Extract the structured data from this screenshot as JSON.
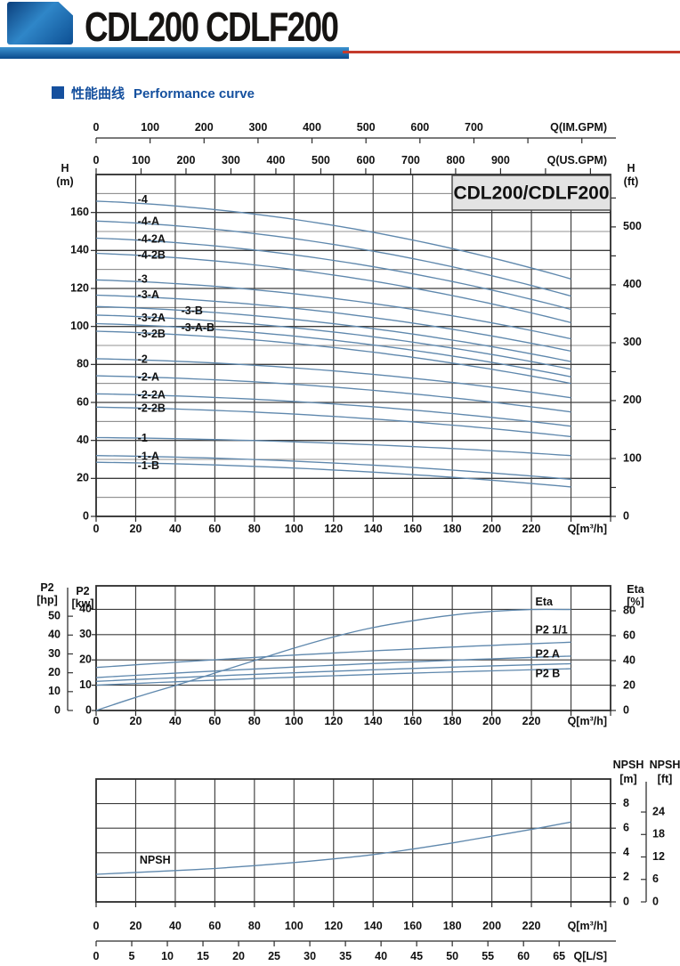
{
  "header": {
    "title": "CDL200 CDLF200"
  },
  "section": {
    "title_zh": "性能曲线",
    "title_en": "Performance curve"
  },
  "colors": {
    "curve": "#5f88ad",
    "grid_major": "#3d3d3d",
    "grid_minor": "#6e6e6e",
    "border": "#2b2b2b",
    "text": "#111111",
    "box_bg": "#e3e3e3",
    "accent_blue": "#15509e",
    "accent_red": "#c43b2c"
  },
  "chart_data": [
    {
      "type": "line",
      "title_box": "CDL200/CDLF200",
      "x_bottom": {
        "label": "Q[m³/h]",
        "ticks": [
          0,
          20,
          40,
          60,
          80,
          100,
          120,
          140,
          160,
          180,
          200,
          220
        ],
        "domain": [
          0,
          260
        ],
        "grid_step": 20
      },
      "x_top_us": {
        "label": "Q(US.GPM)",
        "ticks": [
          0,
          100,
          200,
          300,
          400,
          500,
          600,
          700,
          800,
          900
        ],
        "m3h_per_unit": 0.22712
      },
      "x_top_im": {
        "label": "Q(IM.GPM)",
        "ticks": [
          0,
          100,
          200,
          300,
          400,
          500,
          600,
          700
        ],
        "m3h_per_unit": 0.27276
      },
      "y_left": {
        "title": "H",
        "unit": "(m)",
        "ticks": [
          0,
          20,
          40,
          60,
          80,
          100,
          120,
          140,
          160
        ],
        "domain": [
          0,
          180
        ],
        "grid_step": 10
      },
      "y_right": {
        "title": "H",
        "unit": "(ft)",
        "ticks": [
          0,
          100,
          200,
          300,
          400,
          500
        ],
        "tick_step": 50,
        "m_per_unit": 0.3048
      },
      "q_end": 240,
      "series": [
        {
          "name": "-4",
          "h0": 166,
          "h1": 125,
          "label_q": 21,
          "label_h": 166.5
        },
        {
          "name": "-4-A",
          "h0": 155.5,
          "h1": 116,
          "label_q": 21,
          "label_h": 155
        },
        {
          "name": "-4-2A",
          "h0": 146.5,
          "h1": 109,
          "label_q": 21,
          "label_h": 145.6
        },
        {
          "name": "-4-2B",
          "h0": 138.5,
          "h1": 102,
          "label_q": 21,
          "label_h": 137.2
        },
        {
          "name": "-3",
          "h0": 124.5,
          "h1": 93.5,
          "label_q": 21,
          "label_h": 124.7
        },
        {
          "name": "-3-A",
          "h0": 116.5,
          "h1": 87,
          "label_q": 21,
          "label_h": 116.3
        },
        {
          "name": "-3-B",
          "h0": 110.5,
          "h1": 81.5,
          "label_q": 43,
          "label_h": 107.9
        },
        {
          "name": "-3-2A",
          "h0": 106,
          "h1": 77.5,
          "label_q": 21,
          "label_h": 104.2
        },
        {
          "name": "-3-A-B",
          "h0": 101.5,
          "h1": 73.5,
          "label_q": 43,
          "label_h": 99.1
        },
        {
          "name": "-3-2B",
          "h0": 97.5,
          "h1": 70,
          "label_q": 21,
          "label_h": 95.8
        },
        {
          "name": "-2",
          "h0": 83,
          "h1": 62.5,
          "label_q": 21,
          "label_h": 82.3
        },
        {
          "name": "-2-A",
          "h0": 74,
          "h1": 55,
          "label_q": 21,
          "label_h": 73
        },
        {
          "name": "-2-2A",
          "h0": 64.5,
          "h1": 47.5,
          "label_q": 21,
          "label_h": 63.7
        },
        {
          "name": "-2-2B",
          "h0": 57.5,
          "h1": 42,
          "label_q": 21,
          "label_h": 56.7
        },
        {
          "name": "-1",
          "h0": 41.5,
          "h1": 32,
          "label_q": 21,
          "label_h": 40.9
        },
        {
          "name": "-1-A",
          "h0": 32,
          "h1": 19.5,
          "label_q": 21,
          "label_h": 31.2
        },
        {
          "name": "-1-B",
          "h0": 28.5,
          "h1": 15.5,
          "label_q": 21,
          "label_h": 26.5
        }
      ]
    },
    {
      "type": "line",
      "x_bottom": {
        "label": "Q[m³/h]",
        "ticks": [
          0,
          20,
          40,
          60,
          80,
          100,
          120,
          140,
          160,
          180,
          200,
          220
        ],
        "domain": [
          0,
          260
        ],
        "grid_step": 20
      },
      "y_kw": {
        "title": "P2",
        "unit": "[kw]",
        "ticks": [
          0,
          10,
          20,
          30,
          40
        ],
        "domain": [
          0,
          49.3
        ],
        "grid_step": 10
      },
      "y_hp": {
        "title": "P2",
        "unit": "[hp]",
        "ticks": [
          0,
          10,
          20,
          30,
          40,
          50
        ],
        "kw_per_unit": 0.7457
      },
      "y_eta": {
        "title": "Eta",
        "unit": "[%]",
        "ticks": [
          0,
          20,
          40,
          60,
          80
        ],
        "domain": [
          0,
          100
        ]
      },
      "q_end": 240,
      "series": [
        {
          "name": "Eta",
          "scale": "eta",
          "points": [
            [
              0,
              0
            ],
            [
              20,
              10.5
            ],
            [
              40,
              20
            ],
            [
              60,
              30
            ],
            [
              80,
              40
            ],
            [
              100,
              50
            ],
            [
              120,
              59
            ],
            [
              140,
              66.5
            ],
            [
              160,
              72
            ],
            [
              180,
              76.5
            ],
            [
              200,
              79.5
            ],
            [
              220,
              81
            ],
            [
              240,
              81
            ]
          ],
          "label_q": 222,
          "label_v": 86.5
        },
        {
          "name": "P2 1/1",
          "scale": "kw",
          "p0": 17,
          "p1": 27,
          "label_q": 222,
          "label_v": 31.7
        },
        {
          "name": "P2 A",
          "scale": "kw",
          "p0": 13,
          "p1": 21.5,
          "label_q": 222,
          "label_v": 22.2
        },
        {
          "name": "",
          "scale": "kw",
          "p0": 11.5,
          "p1": 18.5
        },
        {
          "name": "P2 B",
          "scale": "kw",
          "p0": 10,
          "p1": 16.5,
          "label_q": 222,
          "label_v": 14.4
        }
      ]
    },
    {
      "type": "line",
      "x_bottom": {
        "label": "Q[m³/h]",
        "ticks": [
          0,
          20,
          40,
          60,
          80,
          100,
          120,
          140,
          160,
          180,
          200,
          220
        ],
        "domain": [
          0,
          260
        ],
        "grid_step": 20
      },
      "x_ls": {
        "label": "Q[L/S]",
        "ticks": [
          0,
          5,
          10,
          15,
          20,
          25,
          30,
          35,
          40,
          45,
          50,
          55,
          60,
          65
        ],
        "m3h_per_unit": 3.6
      },
      "y_m": {
        "title": "NPSH",
        "unit": "[m]",
        "ticks": [
          0,
          2,
          4,
          6,
          8
        ],
        "domain": [
          0,
          10
        ],
        "grid_step": 2
      },
      "y_ft": {
        "title": "NPSH",
        "unit": "[ft]",
        "ticks": [
          0,
          6,
          12,
          18,
          24
        ],
        "m_per_unit": 0.3048
      },
      "series": [
        {
          "name": "NPSH",
          "points": [
            [
              0,
              2.25
            ],
            [
              20,
              2.4
            ],
            [
              40,
              2.55
            ],
            [
              60,
              2.72
            ],
            [
              80,
              2.95
            ],
            [
              100,
              3.2
            ],
            [
              120,
              3.5
            ],
            [
              140,
              3.85
            ],
            [
              160,
              4.3
            ],
            [
              180,
              4.8
            ],
            [
              200,
              5.35
            ],
            [
              220,
              5.9
            ],
            [
              240,
              6.5
            ]
          ],
          "label_q": 22,
          "label_v": 3.35
        }
      ]
    }
  ]
}
